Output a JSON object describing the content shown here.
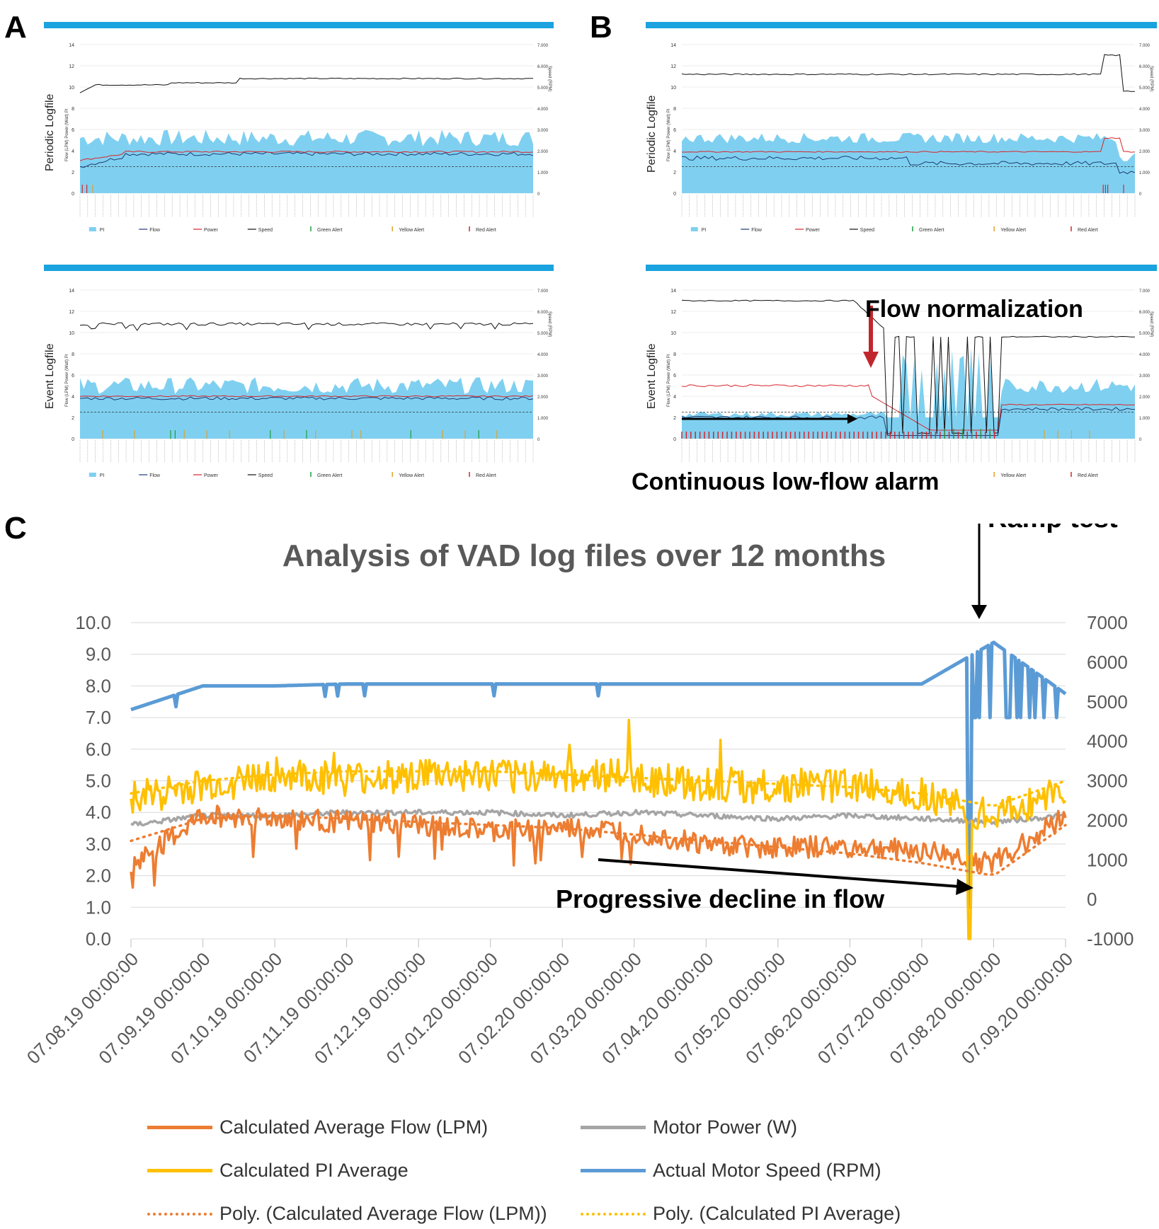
{
  "panels": {
    "a_label": "A",
    "b_label": "B",
    "c_label": "C"
  },
  "small_charts": {
    "periodic_label": "Periodic Logfile",
    "event_label": "Event Logfile",
    "left_axis_label": "Flow (LPM) Power (Watt) PI",
    "right_axis_label": "Speed (RPM)",
    "left_ticks": [
      "14",
      "12",
      "10",
      "8",
      "6",
      "4",
      "2",
      "0"
    ],
    "right_ticks": [
      "7.000",
      "6.000",
      "5.000",
      "4.000",
      "3.000",
      "2.000",
      "1.000",
      "0"
    ],
    "legend": {
      "pi": "PI",
      "flow": "Flow",
      "power": "Power",
      "speed": "Speed",
      "green": "Green Alert",
      "yellow": "Yellow Alert",
      "red": "Red Alert"
    },
    "colors": {
      "pi_fill": "#7fd0f0",
      "flow": "#1f3b73",
      "power": "#d7262b",
      "speed": "#111111",
      "green": "#1a9e3a",
      "yellow": "#e0a12a",
      "red": "#d7262b",
      "bar": "#1aa3de"
    }
  },
  "annotations": {
    "flow_normalization": "Flow normalization",
    "low_flow_alarm": "Continuous low-flow alarm",
    "ramp_test": "Ramp test",
    "progressive_decline": "Progressive decline in flow"
  },
  "chart_data": {
    "type": "line",
    "title": "Analysis of VAD log files over 12 months",
    "xlabel": "",
    "ylabel": "",
    "ylim": [
      0,
      10
    ],
    "y2lim": [
      -1000,
      7000
    ],
    "yticks": [
      "10.0",
      "9.0",
      "8.0",
      "7.0",
      "6.0",
      "5.0",
      "4.0",
      "3.0",
      "2.0",
      "1.0",
      "0.0"
    ],
    "y2ticks": [
      "7000",
      "6000",
      "5000",
      "4000",
      "3000",
      "2000",
      "1000",
      "0",
      "-1000"
    ],
    "categories": [
      "07.08.19 00:00:00",
      "07.09.19 00:00:00",
      "07.10.19 00:00:00",
      "07.11.19 00:00:00",
      "07.12.19 00:00:00",
      "07.01.20 00:00:00",
      "07.02.20 00:00:00",
      "07.03.20 00:00:00",
      "07.04.20 00:00:00",
      "07.05.20 00:00:00",
      "07.06.20 00:00:00",
      "07.07.20 00:00:00",
      "07.08.20 00:00:00",
      "07.09.20 00:00:00"
    ],
    "grid": true,
    "legend_position": "bottom",
    "series": [
      {
        "name": "Calculated Average Flow (LPM)",
        "color": "#ed7d31",
        "axis": "left",
        "style": "solid",
        "values": [
          2.3,
          3.9,
          3.8,
          3.7,
          3.6,
          3.4,
          3.5,
          3.4,
          3.0,
          2.9,
          2.9,
          2.8,
          2.4,
          3.9
        ]
      },
      {
        "name": "Calculated PI Average",
        "color": "#ffc000",
        "axis": "left",
        "style": "solid",
        "values": [
          4.5,
          4.8,
          5.2,
          5.0,
          5.2,
          5.1,
          5.2,
          5.1,
          4.9,
          4.8,
          4.9,
          4.6,
          3.8,
          4.8
        ]
      },
      {
        "name": "Motor Power (W)",
        "color": "#a5a5a5",
        "axis": "left",
        "style": "solid",
        "values": [
          3.6,
          3.9,
          3.9,
          4.0,
          4.0,
          4.0,
          3.9,
          4.0,
          3.9,
          3.8,
          3.9,
          3.8,
          3.7,
          3.9
        ]
      },
      {
        "name": "Actual Motor Speed (RPM)",
        "color": "#5b9bd5",
        "axis": "right",
        "style": "solid",
        "values": [
          4800,
          5400,
          5400,
          5450,
          5450,
          5450,
          5450,
          5450,
          5450,
          5450,
          5450,
          5450,
          6500,
          5200
        ]
      },
      {
        "name": "Poly. (Calculated Average Flow (LPM))",
        "color": "#ed7d31",
        "axis": "left",
        "style": "dotted",
        "values": [
          3.1,
          3.8,
          3.9,
          3.8,
          3.7,
          3.6,
          3.5,
          3.3,
          3.1,
          2.9,
          2.7,
          2.4,
          2.0,
          3.6
        ]
      },
      {
        "name": "Poly. (Calculated PI Average)",
        "color": "#ffc000",
        "axis": "left",
        "style": "dotted",
        "values": [
          4.6,
          5.0,
          5.2,
          5.3,
          5.3,
          5.3,
          5.2,
          5.1,
          5.0,
          4.9,
          4.8,
          4.6,
          4.2,
          5.0
        ]
      }
    ]
  }
}
